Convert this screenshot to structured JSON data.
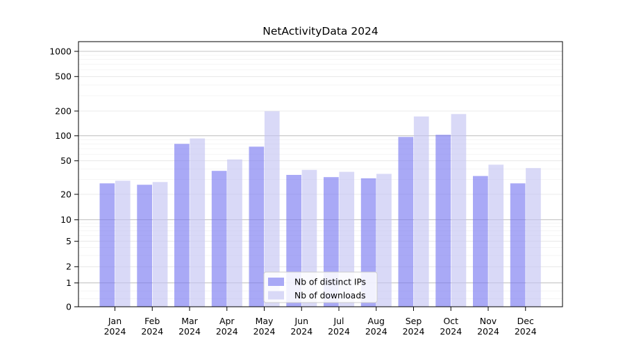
{
  "title": "NetActivityData 2024",
  "chart_data": {
    "type": "bar",
    "categories": [
      "Jan 2024",
      "Feb 2024",
      "Mar 2024",
      "Apr 2024",
      "May 2024",
      "Jun 2024",
      "Jul 2024",
      "Aug 2024",
      "Sep 2024",
      "Oct 2024",
      "Nov 2024",
      "Dec 2024"
    ],
    "series": [
      {
        "name": "Nb of distinct IPs",
        "color": "#a9a9f6",
        "values": [
          27,
          26,
          80,
          38,
          74,
          34,
          32,
          31,
          97,
          103,
          33,
          27
        ]
      },
      {
        "name": "Nb of downloads",
        "color": "#d9d9f7",
        "values": [
          29,
          28,
          93,
          52,
          199,
          39,
          37,
          35,
          172,
          184,
          45,
          41
        ]
      }
    ],
    "yticks": [
      0,
      1,
      2,
      5,
      10,
      20,
      50,
      100,
      200,
      500,
      1000
    ],
    "yscale": "symlog",
    "ylim": [
      0,
      1300
    ],
    "xlabel": "",
    "ylabel": "",
    "grid": true,
    "legend_position": "lower center",
    "colors": {
      "major_gridline": "#b3b3b3",
      "labeled_gridline": "#e4e4e4",
      "minor_gridline": "#f2f2f2",
      "axis": "#000000",
      "text": "#000000",
      "legend_border": "#cccccc",
      "legend_background": "#ffffff"
    }
  }
}
